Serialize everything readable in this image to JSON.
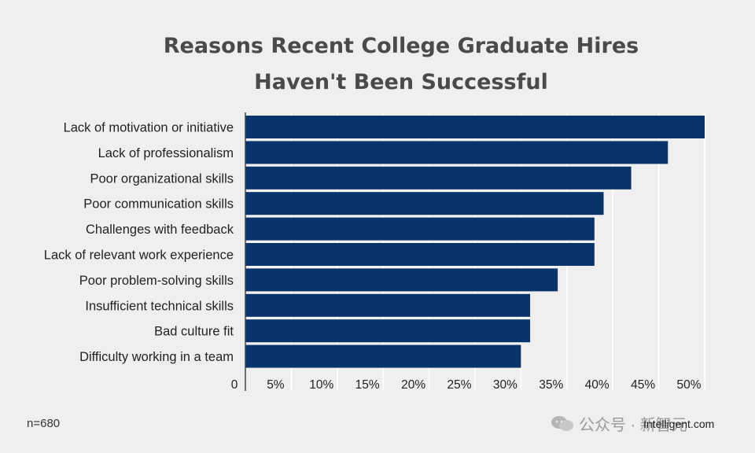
{
  "chart_data": {
    "type": "bar",
    "orientation": "horizontal",
    "title_lines": [
      "Reasons Recent College Graduate Hires",
      "Haven't Been Successful"
    ],
    "categories": [
      "Lack of motivation or initiative",
      "Lack of professionalism",
      "Poor organizational skills",
      "Poor communication skills",
      "Challenges with feedback",
      "Lack of relevant work experience",
      "Poor problem-solving skills",
      "Insufficient technical skills",
      "Bad culture fit",
      "Difficulty working in a team"
    ],
    "values": [
      50,
      46,
      42,
      39,
      38,
      38,
      34,
      31,
      31,
      30
    ],
    "xlim": [
      0,
      50
    ],
    "xticks": [
      0,
      5,
      10,
      15,
      20,
      25,
      30,
      35,
      40,
      45,
      50
    ],
    "xtick_labels": [
      "0",
      "5%",
      "10%",
      "15%",
      "20%",
      "25%",
      "30%",
      "35%",
      "40%",
      "45%",
      "50%"
    ],
    "xlabel": "",
    "ylabel": "",
    "grid": "vertical",
    "bar_color": "#08336b"
  },
  "footnote": "n=680",
  "watermark": {
    "icon": "wechat-icon",
    "text": "公众号 · 新智元"
  },
  "source": "Intelligent.com"
}
